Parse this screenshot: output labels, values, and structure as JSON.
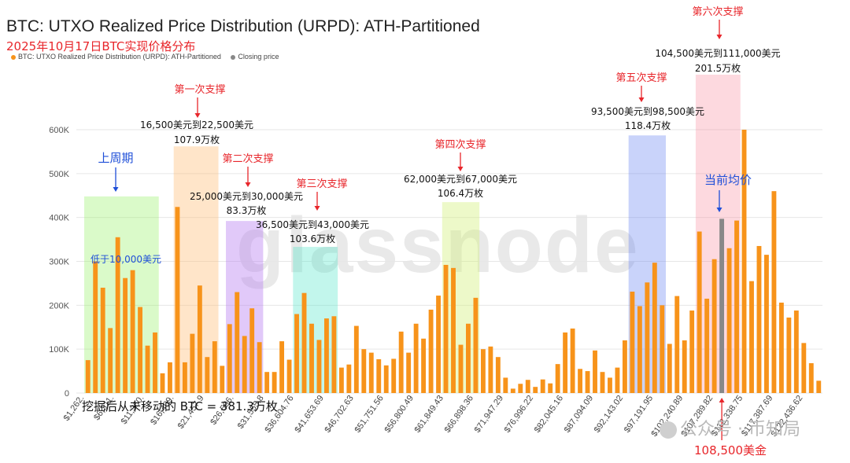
{
  "header": {
    "title": "BTC: UTXO Realized Price Distribution (URPD): ATH-Partitioned",
    "subtitle": "2025年10月17日BTC实现价格分布"
  },
  "legend": {
    "items": [
      {
        "label": "BTC: UTXO Realized Price Distribution (URPD): ATH-Partitioned",
        "color": "#f7931a"
      },
      {
        "label": "Closing price",
        "color": "#888888"
      }
    ]
  },
  "watermark": "glassnode",
  "logo_text": "公众号 · 币知局",
  "bottom_note": "挖掘后从未移动的 BTC = 381.3万枚",
  "colors": {
    "bar": "#f7931a",
    "closing_bar": "#888888",
    "annotation_red": "#e8262b",
    "annotation_blue": "#1f4fd8"
  },
  "chart_data": {
    "type": "bar",
    "title": "BTC: UTXO Realized Price Distribution (URPD): ATH-Partitioned",
    "xlabel": "",
    "ylabel": "",
    "ylim": [
      0,
      620000
    ],
    "yticks": [
      0,
      100000,
      200000,
      300000,
      400000,
      500000,
      600000
    ],
    "ytick_labels": [
      "0",
      "100K",
      "200K",
      "300K",
      "400K",
      "500K",
      "600K"
    ],
    "grid": true,
    "legend_position": "top-left",
    "xtick_labels": [
      "$1,262.",
      "$6,311.",
      "$11,360.",
      "$16,409.",
      "$21,457.9",
      "$26,506.",
      "$31,555.8",
      "$36,604.76",
      "$41,653.69",
      "$46,702.63",
      "$51,751.56",
      "$56,800.49",
      "$61,849.43",
      "$66,898.36",
      "$71,947.29",
      "$76,996.22",
      "$82,045.16",
      "$87,094.09",
      "$92,143.02",
      "$97,191.95",
      "$102,240.89",
      "$107,289.82",
      "$112,338.75",
      "$117,387.69",
      "$122,436.62"
    ],
    "values": [
      75000,
      300000,
      240000,
      148000,
      355000,
      262000,
      280000,
      196000,
      108000,
      138000,
      45000,
      70000,
      424000,
      70000,
      135000,
      245000,
      82000,
      118000,
      62000,
      157000,
      230000,
      130000,
      193000,
      116000,
      48000,
      48000,
      118000,
      76000,
      180000,
      228000,
      158000,
      121000,
      170000,
      175000,
      58000,
      65000,
      153000,
      100000,
      92000,
      77000,
      63000,
      78000,
      140000,
      92000,
      158000,
      124000,
      190000,
      222000,
      292000,
      285000,
      110000,
      158000,
      217000,
      100000,
      106000,
      82000,
      35000,
      10000,
      21000,
      30000,
      14000,
      31000,
      22000,
      66000,
      138000,
      147000,
      55000,
      50000,
      97000,
      48000,
      35000,
      58000,
      120000,
      231000,
      198000,
      252000,
      297000,
      200000,
      112000,
      221000,
      120000,
      188000,
      368000,
      215000,
      305000,
      397000,
      330000,
      393000,
      600000,
      255000,
      335000,
      315000,
      460000,
      206000,
      172000,
      188000,
      114000,
      68000,
      28000
    ],
    "closing_index": 85,
    "closing_price": "108,500美金",
    "bands": [
      {
        "start": 0,
        "end": 9,
        "color": "rgba(150,240,100,0.35)",
        "top": 448000
      },
      {
        "start": 12,
        "end": 17,
        "color": "rgba(255,190,120,0.4)",
        "top": 562000
      },
      {
        "start": 19,
        "end": 23,
        "color": "rgba(180,120,240,0.4)",
        "top": 392000
      },
      {
        "start": 28,
        "end": 33,
        "color": "rgba(80,230,200,0.35)",
        "top": 333000
      },
      {
        "start": 48,
        "end": 52,
        "color": "rgba(210,240,120,0.4)",
        "top": 435000
      },
      {
        "start": 73,
        "end": 77,
        "color": "rgba(100,130,240,0.35)",
        "top": 587000
      },
      {
        "start": 82,
        "end": 87,
        "color": "rgba(250,130,150,0.3)",
        "top": 760000
      }
    ],
    "annotations": {
      "cycle_label": "上周期",
      "below_10k": "低于10,000美元",
      "current_avg": "当前均价",
      "supports": [
        {
          "name": "第一次支撑",
          "range": "16,500美元到22,500美元",
          "amount": "107.9万枚"
        },
        {
          "name": "第二次支撑",
          "range": "25,000美元到30,000美元",
          "amount": "83.3万枚"
        },
        {
          "name": "第三次支撑",
          "range": "36,500美元到43,000美元",
          "amount": "103.6万枚"
        },
        {
          "name": "第四次支撑",
          "range": "62,000美元到67,000美元",
          "amount": "106.4万枚"
        },
        {
          "name": "第五次支撑",
          "range": "93,500美元到98,500美元",
          "amount": "118.4万枚"
        },
        {
          "name": "第六次支撑",
          "range": "104,500美元到111,000美元",
          "amount": "201.5万枚"
        }
      ]
    }
  }
}
